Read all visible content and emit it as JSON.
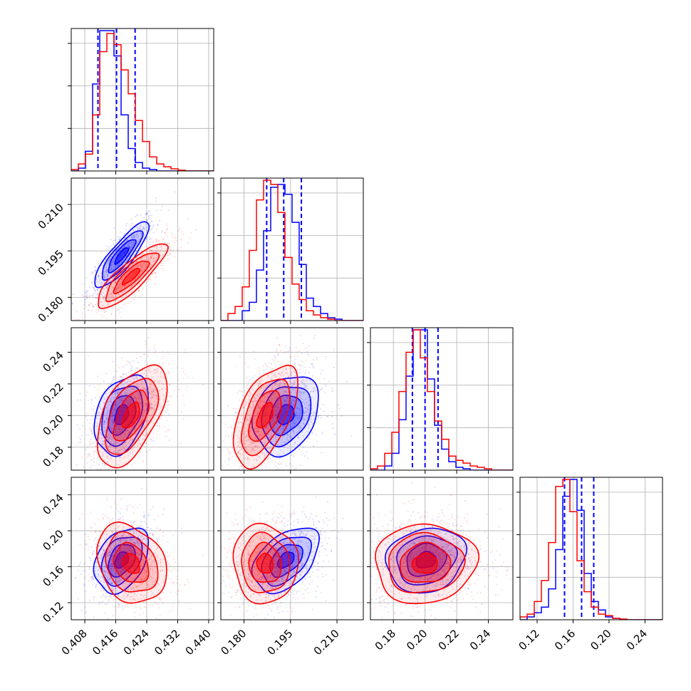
{
  "chart_data": {
    "type": "corner",
    "title": "",
    "grid": true,
    "legend": "none",
    "colors": {
      "series_a": "#0000ff",
      "series_b": "#ff0000"
    },
    "parameters": [
      {
        "range": [
          0.4045,
          0.4413
        ],
        "ticks": [
          "0.408",
          "0.416",
          "0.424",
          "0.432",
          "0.440"
        ],
        "tick_values": [
          0.408,
          0.416,
          0.424,
          0.432,
          0.44
        ]
      },
      {
        "range": [
          0.1725,
          0.2185
        ],
        "ticks": [
          "0.180",
          "0.195",
          "0.210"
        ],
        "tick_values": [
          0.18,
          0.195,
          0.21
        ]
      },
      {
        "range": [
          0.1655,
          0.2555
        ],
        "ticks": [
          "0.18",
          "0.20",
          "0.22",
          "0.24"
        ],
        "tick_values": [
          0.18,
          0.2,
          0.22,
          0.24
        ]
      },
      {
        "range": [
          0.101,
          0.2595
        ],
        "ticks": [
          "0.12",
          "0.16",
          "0.20",
          "0.24"
        ],
        "tick_values": [
          0.12,
          0.16,
          0.2,
          0.24
        ]
      }
    ],
    "series": [
      {
        "color": "#0000ff",
        "means": [
          0.4175,
          0.1935,
          0.2005,
          0.1675
        ],
        "sigmas": [
          0.0035,
          0.0053,
          0.0125,
          0.018
        ],
        "correlations": {
          "1-0": 0.85,
          "2-0": 0.35,
          "2-1": 0.25,
          "3-0": 0.35,
          "3-1": 0.45,
          "3-2": 0.15
        },
        "quantiles": [
          [
            0.4114,
            0.4162,
            0.421
          ],
          [
            0.1873,
            0.1928,
            0.1985
          ],
          [
            0.192,
            0.2,
            0.2082
          ],
          [
            0.1505,
            0.1695,
            0.183
          ]
        ],
        "hist": [
          [
            0,
            0.02,
            0.14,
            0.62,
            1.0,
            1.0,
            0.82,
            0.4,
            0.16,
            0.06,
            0.02,
            0.01,
            0,
            0,
            0,
            0,
            0,
            0,
            0,
            0
          ],
          [
            0,
            0,
            0,
            0.07,
            0.13,
            0.36,
            0.64,
            0.95,
            0.97,
            0.9,
            0.7,
            0.4,
            0.16,
            0.1,
            0.05,
            0.02,
            0.01,
            0,
            0,
            0
          ],
          [
            0,
            0,
            0.03,
            0.12,
            0.36,
            0.67,
            1.0,
            1.0,
            0.65,
            0.32,
            0.15,
            0.06,
            0.02,
            0.01,
            0,
            0,
            0,
            0,
            0,
            0
          ],
          [
            0,
            0.02,
            0.05,
            0.09,
            0.22,
            0.5,
            0.88,
            1.0,
            0.78,
            0.33,
            0.13,
            0.07,
            0.02,
            0.01,
            0,
            0,
            0,
            0,
            0,
            0
          ]
        ]
      },
      {
        "color": "#ff0000",
        "means": [
          0.42,
          0.1868,
          0.2,
          0.1635
        ],
        "sigmas": [
          0.0045,
          0.0052,
          0.016,
          0.022
        ],
        "correlations": {
          "1-0": 0.85,
          "2-0": 0.55,
          "2-1": 0.55,
          "3-0": -0.25,
          "3-1": -0.05,
          "3-2": 0.05
        },
        "quantiles": [],
        "hist": [
          [
            0.01,
            0.05,
            0.12,
            0.4,
            0.85,
            0.98,
            0.9,
            0.72,
            0.55,
            0.36,
            0.21,
            0.1,
            0.05,
            0.03,
            0.015,
            0.005,
            0,
            0,
            0,
            0
          ],
          [
            0,
            0.05,
            0.1,
            0.24,
            0.5,
            0.86,
            1.0,
            0.97,
            0.77,
            0.45,
            0.26,
            0.15,
            0.07,
            0.04,
            0.02,
            0.01,
            0,
            0,
            0,
            0
          ],
          [
            0.01,
            0.03,
            0.12,
            0.27,
            0.56,
            0.84,
            1.0,
            0.8,
            0.56,
            0.35,
            0.22,
            0.1,
            0.07,
            0.05,
            0.03,
            0.02,
            0.01,
            0,
            0,
            0
          ],
          [
            0.02,
            0.04,
            0.13,
            0.28,
            0.55,
            0.95,
            1.0,
            0.77,
            0.42,
            0.2,
            0.09,
            0.04,
            0.03,
            0.01,
            0.005,
            0,
            0,
            0,
            0,
            0
          ]
        ]
      }
    ]
  }
}
